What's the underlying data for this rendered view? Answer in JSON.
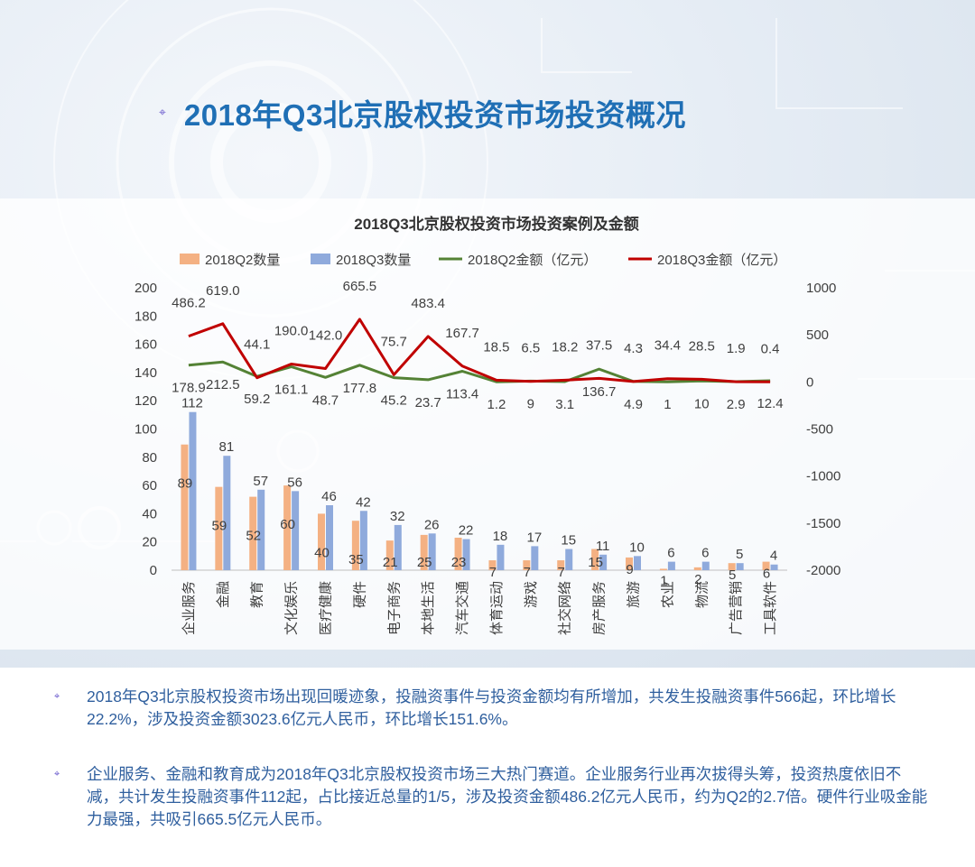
{
  "page": {
    "title": "2018年Q3北京股权投资市场投资概况",
    "bullet": "⌖"
  },
  "paragraphs": [
    "2018年Q3北京股权投资市场出现回暖迹象，投融资事件与投资金额均有所增加，共发生投融资事件566起，环比增长22.2%，涉及投资金额3023.6亿元人民币，环比增长151.6%。",
    "企业服务、金融和教育成为2018年Q3北京股权投资市场三大热门赛道。企业服务行业再次拔得头筹，投资热度依旧不减，共计发生投融资事件112起，占比接近总量的1/5，涉及投资金额486.2亿元人民币，约为Q2的2.7倍。硬件行业吸金能力最强，共吸引665.5亿元人民币。"
  ],
  "colors": {
    "q2_count": "#f4b183",
    "q3_count": "#8faadc",
    "q2_amount": "#548235",
    "q3_amount": "#c00000",
    "title": "#1f6fb5",
    "text": "#2f5f9e"
  },
  "chart_data": {
    "type": "bar",
    "title": "2018Q3北京股权投资市场投资案例及金额",
    "categories": [
      "企业服务",
      "金融",
      "教育",
      "文化娱乐",
      "医疗健康",
      "硬件",
      "电子商务",
      "本地生活",
      "汽车交通",
      "体育运动",
      "游戏",
      "社交网络",
      "房产服务",
      "旅游",
      "农业",
      "物流",
      "广告营销",
      "工具软件"
    ],
    "series": [
      {
        "name": "2018Q2数量",
        "kind": "bar",
        "axis": "left",
        "values": [
          89,
          59,
          52,
          60,
          40,
          35,
          21,
          25,
          23,
          7,
          7,
          7,
          15,
          9,
          1,
          2,
          5,
          6
        ]
      },
      {
        "name": "2018Q3数量",
        "kind": "bar",
        "axis": "left",
        "values": [
          112,
          81,
          57,
          56,
          46,
          42,
          32,
          26,
          22,
          18,
          17,
          15,
          11,
          10,
          6,
          6,
          5,
          4
        ]
      },
      {
        "name": "2018Q2金额（亿元）",
        "kind": "line",
        "axis": "right",
        "values": [
          178.9,
          212.5,
          59.2,
          161.1,
          48.7,
          177.8,
          45.2,
          23.7,
          113.4,
          1.2,
          9,
          3.1,
          136.7,
          4.9,
          1,
          10,
          2.9,
          12.4
        ]
      },
      {
        "name": "2018Q3金额（亿元）",
        "kind": "line",
        "axis": "right",
        "values": [
          486.2,
          619.0,
          44.1,
          190.0,
          142.0,
          665.5,
          75.7,
          483.4,
          167.7,
          18.5,
          6.5,
          18.2,
          37.5,
          4.3,
          34.4,
          28.5,
          1.9,
          0.4
        ]
      }
    ],
    "q2_amount_labels": [
      "178.9",
      "212.5",
      "59.2",
      "161.1",
      "48.7",
      "177.8",
      "45.2",
      "23.7",
      "113.4",
      "1.2",
      "9",
      "3.1",
      "136.7",
      "4.9",
      "1",
      "10",
      "2.9",
      "12.4"
    ],
    "q3_amount_labels": [
      "486.2",
      "619.0",
      "44.1",
      "190.0",
      "142.0",
      "665.5",
      "75.7",
      "483.4",
      "167.7",
      "18.5",
      "6.5",
      "18.2",
      "37.5",
      "4.3",
      "34.4",
      "28.5",
      "1.9",
      "0.4"
    ],
    "left_axis": {
      "min": 0,
      "max": 200,
      "step": 20,
      "ticks": [
        "0",
        "20",
        "40",
        "60",
        "80",
        "100",
        "120",
        "140",
        "160",
        "180",
        "200"
      ]
    },
    "right_axis": {
      "min": -2000,
      "max": 1000,
      "step": 500,
      "ticks": [
        "-2000",
        "-1500",
        "-1000",
        "-500",
        "0",
        "500",
        "1000"
      ]
    },
    "legend_position": "top"
  }
}
